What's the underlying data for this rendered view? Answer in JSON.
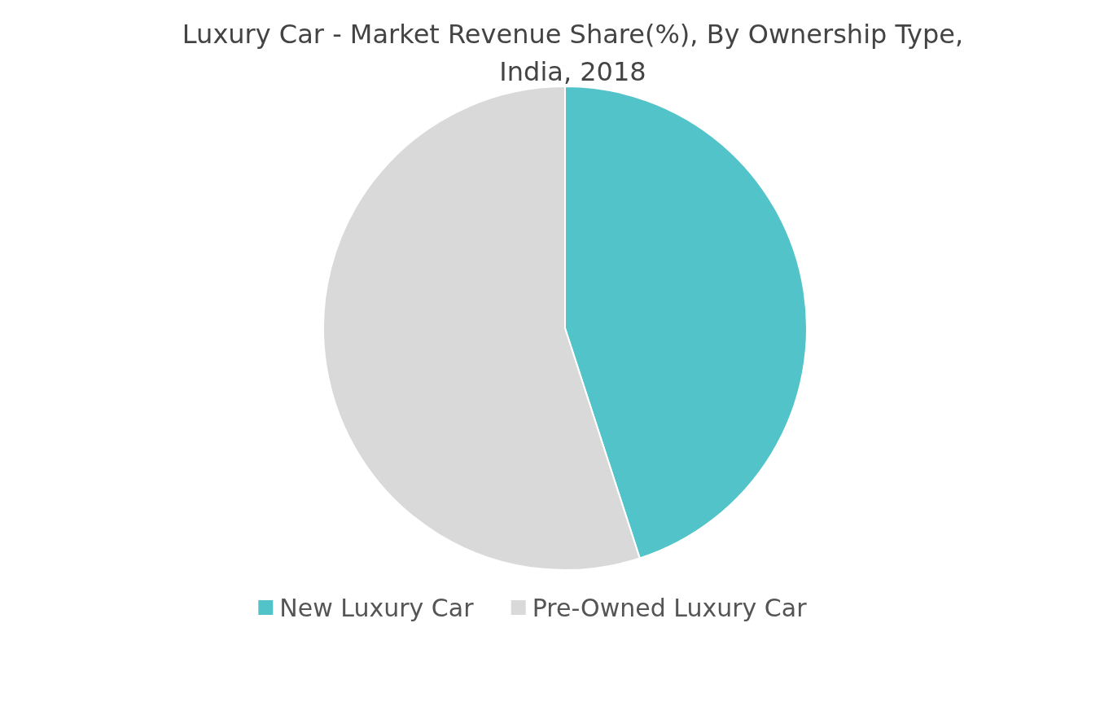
{
  "chart_data": {
    "type": "pie",
    "title": "Luxury Car - Market Revenue Share(%), By Ownership Type, India, 2018",
    "categories": [
      "New Luxury Car",
      "Pre-Owned Luxury Car"
    ],
    "values": [
      45,
      55
    ],
    "colors": [
      "#52c3c9",
      "#d9d9d9"
    ],
    "legend": "bottom"
  }
}
